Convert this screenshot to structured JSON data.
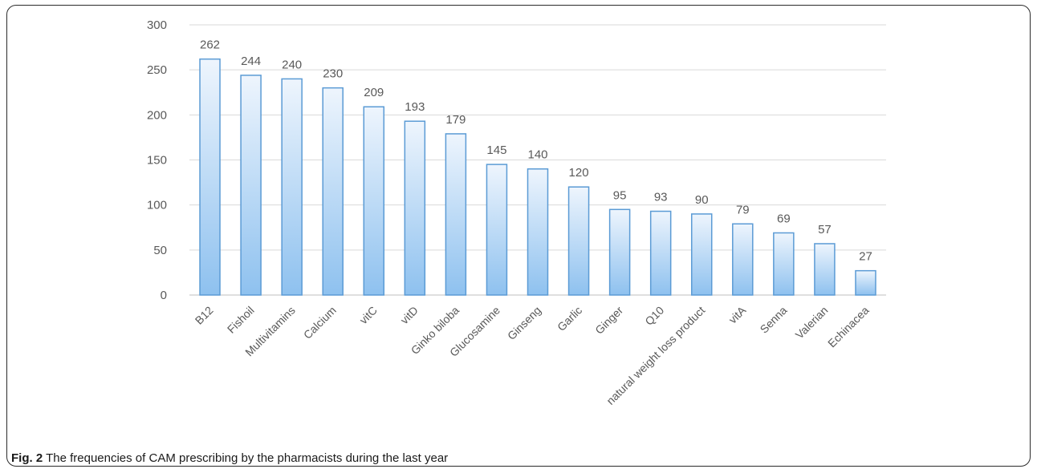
{
  "caption": {
    "label": "Fig. 2",
    "text": "The frequencies of CAM prescribing by the pharmacists during the last year"
  },
  "chart_data": {
    "type": "bar",
    "title": "",
    "xlabel": "",
    "ylabel": "",
    "ylim": [
      0,
      300
    ],
    "yticks": [
      0,
      50,
      100,
      150,
      200,
      250,
      300
    ],
    "grid": true,
    "legend": "none",
    "categories": [
      "B12",
      "Fishoil",
      "Multivitamins",
      "Calcium",
      "vitC",
      "vitD",
      "Ginko biloba",
      "Glucosamine",
      "Ginseng",
      "Garlic",
      "Ginger",
      "Q10",
      "natural weight loss product",
      "vitA",
      "Senna",
      "Valerian",
      "Echinacea"
    ],
    "values": [
      262,
      244,
      240,
      230,
      209,
      193,
      179,
      145,
      140,
      120,
      95,
      93,
      90,
      79,
      69,
      57,
      27
    ],
    "colors": {
      "bar_top": "#eef5fd",
      "bar_bottom": "#8ec1ef",
      "bar_stroke": "#5b9bd5",
      "grid": "#d9d9d9",
      "axis": "#bfbfbf"
    }
  }
}
